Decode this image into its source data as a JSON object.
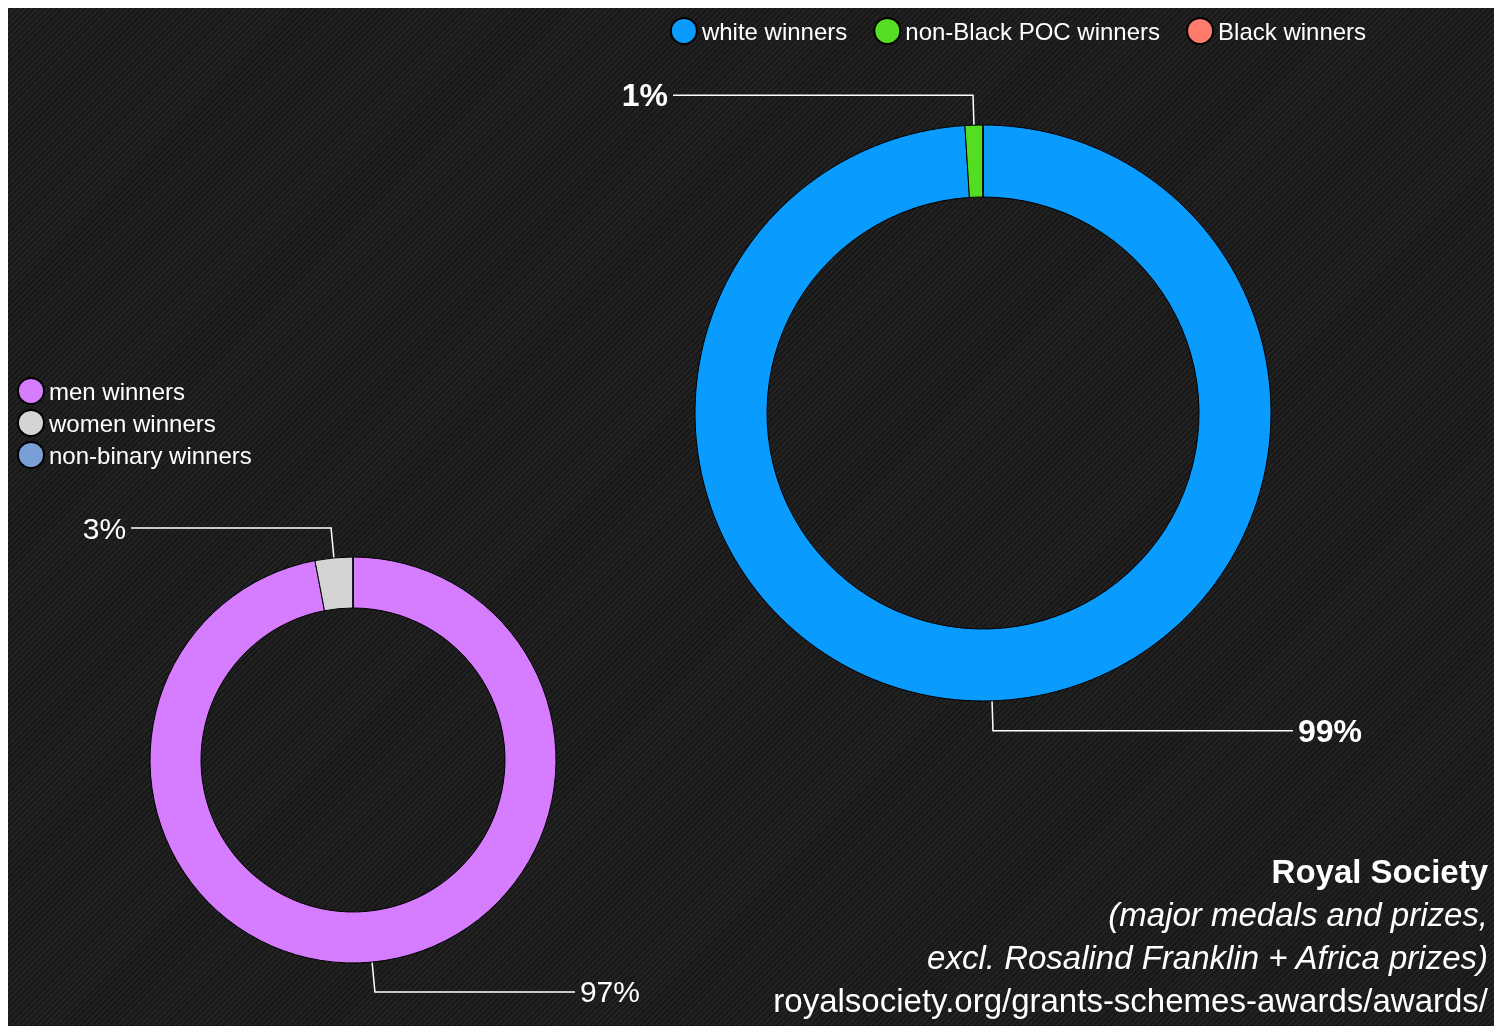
{
  "chart_data": [
    {
      "type": "donut",
      "categories": [
        "white winners",
        "non-Black POC winners",
        "Black winners"
      ],
      "values": [
        99,
        1,
        0
      ],
      "colors": [
        "#0a9bff",
        "#55dd22",
        "#ff7b6b"
      ],
      "value_labels": [
        "99%",
        "1%",
        null
      ],
      "legend": "top"
    },
    {
      "type": "donut",
      "categories": [
        "men winners",
        "women winners",
        "non-binary winners"
      ],
      "values": [
        97,
        3,
        0
      ],
      "colors": [
        "#d67cff",
        "#d4d4d4",
        "#7a9fd6"
      ],
      "value_labels": [
        "97%",
        "3%",
        null
      ],
      "legend": "top left",
      "annotations": [
        "Royal Society",
        "(major medals and prizes,",
        "excl. Rosalind Franklin + Africa prizes)",
        "royalsociety.org/grants-schemes-awards/awards/"
      ]
    }
  ]
}
